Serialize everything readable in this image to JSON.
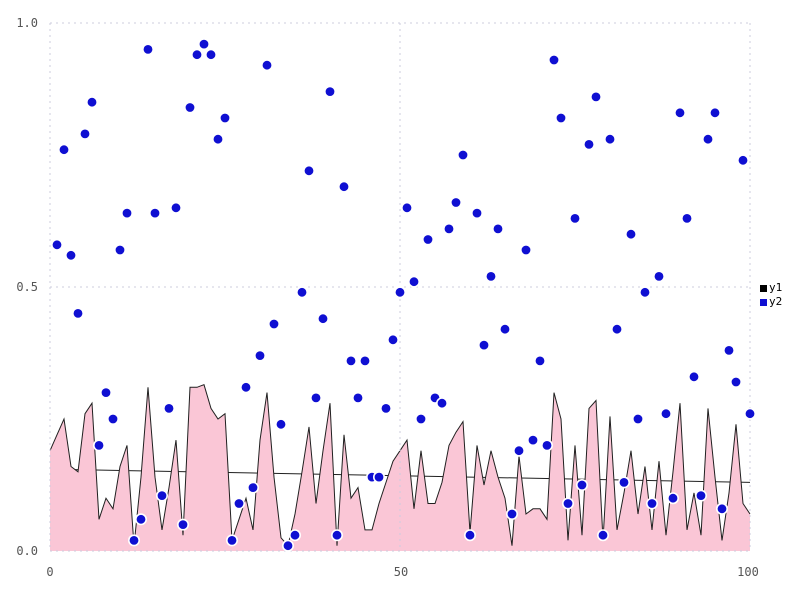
{
  "chart_data": {
    "type": "mixed",
    "title": "",
    "xlabel": "",
    "ylabel": "",
    "x_axis": {
      "min": 0,
      "max": 100,
      "ticks": [
        {
          "label": "0",
          "value": 0
        },
        {
          "label": "50",
          "value": 50
        },
        {
          "label": "100",
          "value": 100
        }
      ]
    },
    "y_axis": {
      "min": 0.0,
      "max": 1.0,
      "ticks": [
        {
          "label": "1.0",
          "value": 1.0
        },
        {
          "label": "0.5",
          "value": 0.5
        },
        {
          "label": "0.0",
          "value": 0.0
        }
      ]
    },
    "grid": "dashed-at-ticks-only",
    "grid_color": "#ccccde",
    "legend": {
      "position": "right-middle",
      "items": [
        {
          "label": "y1",
          "color": "#000000"
        },
        {
          "label": "y2",
          "color": "#0f0fd2"
        }
      ]
    },
    "series": [
      {
        "name": "y1",
        "type": "area",
        "stroke": "#202020",
        "fill": "#fac6d6",
        "x_start": 0,
        "x_step": 1,
        "values": [
          0.19,
          0.22,
          0.25,
          0.16,
          0.15,
          0.26,
          0.28,
          0.06,
          0.1,
          0.08,
          0.16,
          0.2,
          0.01,
          0.14,
          0.31,
          0.14,
          0.04,
          0.12,
          0.21,
          0.03,
          0.31,
          0.31,
          0.315,
          0.27,
          0.25,
          0.26,
          0.02,
          0.06,
          0.1,
          0.04,
          0.21,
          0.3,
          0.14,
          0.025,
          0.01,
          0.07,
          0.15,
          0.235,
          0.09,
          0.19,
          0.28,
          0.01,
          0.22,
          0.1,
          0.12,
          0.04,
          0.04,
          0.09,
          0.13,
          0.17,
          0.19,
          0.21,
          0.08,
          0.19,
          0.09,
          0.09,
          0.13,
          0.2,
          0.225,
          0.245,
          0.035,
          0.2,
          0.125,
          0.19,
          0.14,
          0.1,
          0.01,
          0.18,
          0.07,
          0.08,
          0.08,
          0.06,
          0.3,
          0.25,
          0.02,
          0.2,
          0.03,
          0.27,
          0.285,
          0.02,
          0.255,
          0.04,
          0.11,
          0.19,
          0.07,
          0.16,
          0.04,
          0.17,
          0.03,
          0.15,
          0.28,
          0.04,
          0.11,
          0.03,
          0.27,
          0.14,
          0.02,
          0.11,
          0.24,
          0.09,
          0.07
        ]
      },
      {
        "name": "y1-trend",
        "type": "line",
        "stroke": "#202020",
        "x": [
          0,
          100
        ],
        "values": [
          0.155,
          0.13
        ]
      },
      {
        "name": "y2",
        "type": "scatter",
        "color": "#0f0fd2",
        "point_outline": "#ffffff",
        "x_start": 1,
        "x_step": 1,
        "values": [
          0.58,
          0.76,
          0.56,
          0.45,
          0.79,
          0.85,
          0.2,
          0.3,
          0.25,
          0.57,
          0.64,
          0.02,
          0.06,
          0.95,
          0.64,
          0.105,
          0.27,
          0.65,
          0.05,
          0.84,
          0.94,
          0.96,
          0.94,
          0.78,
          0.82,
          0.02,
          0.09,
          0.31,
          0.12,
          0.37,
          0.92,
          0.43,
          0.24,
          0.01,
          0.03,
          0.49,
          0.72,
          0.29,
          0.44,
          0.87,
          0.03,
          0.69,
          0.36,
          0.29,
          0.36,
          0.14,
          0.14,
          0.27,
          0.4,
          0.49,
          0.65,
          0.51,
          0.25,
          0.59,
          0.29,
          0.28,
          0.61,
          0.66,
          0.75,
          0.03,
          0.64,
          0.39,
          0.52,
          0.61,
          0.42,
          0.07,
          0.19,
          0.57,
          0.21,
          0.36,
          0.2,
          0.93,
          0.82,
          0.09,
          0.63,
          0.125,
          0.77,
          0.86,
          0.03,
          0.78,
          0.42,
          0.13,
          0.6,
          0.25,
          0.49,
          0.09,
          0.52,
          0.26,
          0.1,
          0.83,
          0.63,
          0.33,
          0.105,
          0.78,
          0.83,
          0.08,
          0.38,
          0.32,
          0.74,
          0.26
        ]
      }
    ]
  }
}
